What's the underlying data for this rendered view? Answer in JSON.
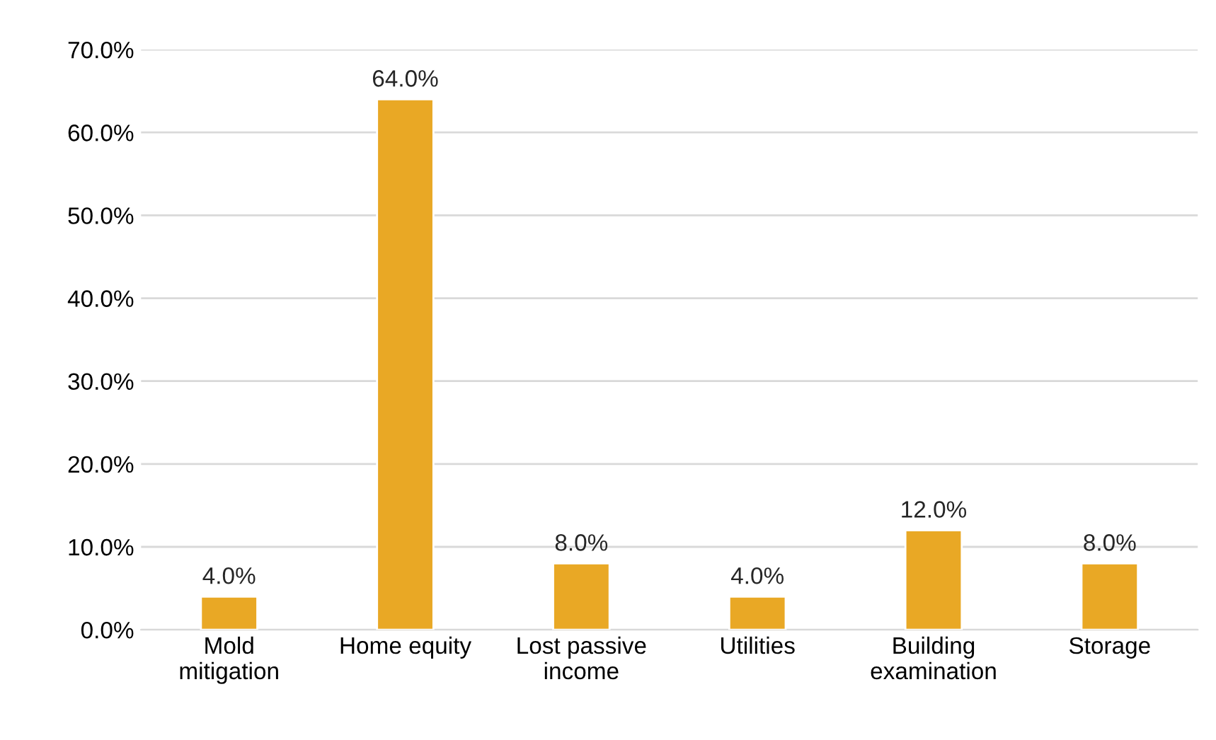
{
  "chart_data": {
    "type": "bar",
    "categories": [
      "Mold\nmitigation",
      "Home equity",
      "Lost passive\nincome",
      "Utilities",
      "Building\nexamination",
      "Storage"
    ],
    "values": [
      4.0,
      64.0,
      8.0,
      4.0,
      12.0,
      8.0
    ],
    "value_labels": [
      "4.0%",
      "64.0%",
      "8.0%",
      "4.0%",
      "12.0%",
      "8.0%"
    ],
    "color": "#e9a825",
    "ylim": [
      0,
      70
    ],
    "yticks": [
      {
        "value": 0,
        "label": "0.0%"
      },
      {
        "value": 10,
        "label": "10.0%"
      },
      {
        "value": 20,
        "label": "20.0%"
      },
      {
        "value": 30,
        "label": "30.0%"
      },
      {
        "value": 40,
        "label": "40.0%"
      },
      {
        "value": 50,
        "label": "50.0%"
      },
      {
        "value": 60,
        "label": "60.0%"
      },
      {
        "value": 70,
        "label": "70.0%"
      }
    ],
    "grid": "y"
  }
}
